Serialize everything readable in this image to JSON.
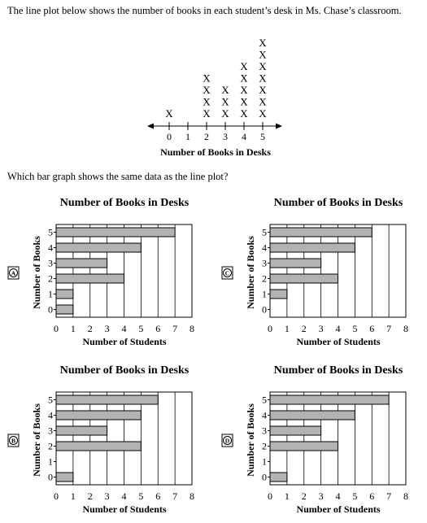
{
  "intro_text": "The line plot below shows the number of books in each student’s desk in Ms. Chase’s classroom.",
  "question_text": "Which bar graph shows the same data as the line plot?",
  "chart_data": [
    {
      "id": "line-plot",
      "type": "scatter",
      "subtype": "line plot",
      "xlabel": "Number of Books in Desks",
      "x_ticks": [
        0,
        1,
        2,
        3,
        4,
        5
      ],
      "marker": "X",
      "x": [
        0,
        1,
        2,
        3,
        4,
        5
      ],
      "values": [
        1,
        0,
        4,
        3,
        5,
        7
      ]
    },
    {
      "id": "chart-a",
      "option": "A",
      "type": "bar",
      "orientation": "horizontal",
      "title": "Number of Books in Desks",
      "xlabel": "Number of Students",
      "ylabel": "Number of Books",
      "categories": [
        "0",
        "1",
        "2",
        "3",
        "4",
        "5"
      ],
      "values": [
        1,
        1,
        4,
        3,
        5,
        7
      ],
      "xlim": [
        0,
        8
      ],
      "x_ticks": [
        0,
        1,
        2,
        3,
        4,
        5,
        6,
        7,
        8
      ],
      "grid": "vertical"
    },
    {
      "id": "chart-c",
      "option": "C",
      "type": "bar",
      "orientation": "horizontal",
      "title": "Number of Books in Desks",
      "xlabel": "Number of Students",
      "ylabel": "Number of Books",
      "categories": [
        "0",
        "1",
        "2",
        "3",
        "4",
        "5"
      ],
      "values": [
        0,
        1,
        4,
        3,
        5,
        6
      ],
      "xlim": [
        0,
        8
      ],
      "x_ticks": [
        0,
        1,
        2,
        3,
        4,
        5,
        6,
        7,
        8
      ],
      "grid": "vertical"
    },
    {
      "id": "chart-b",
      "option": "B",
      "type": "bar",
      "orientation": "horizontal",
      "title": "Number of Books in Desks",
      "xlabel": "Number of Students",
      "ylabel": "Number of Books",
      "categories": [
        "0",
        "1",
        "2",
        "3",
        "4",
        "5"
      ],
      "values": [
        1,
        0,
        5,
        3,
        5,
        6
      ],
      "xlim": [
        0,
        8
      ],
      "x_ticks": [
        0,
        1,
        2,
        3,
        4,
        5,
        6,
        7,
        8
      ],
      "grid": "vertical"
    },
    {
      "id": "chart-d",
      "option": "D",
      "type": "bar",
      "orientation": "horizontal",
      "title": "Number of Books in Desks",
      "xlabel": "Number of Students",
      "ylabel": "Number of Books",
      "categories": [
        "0",
        "1",
        "2",
        "3",
        "4",
        "5"
      ],
      "values": [
        1,
        0,
        4,
        3,
        5,
        7
      ],
      "xlim": [
        0,
        8
      ],
      "x_ticks": [
        0,
        1,
        2,
        3,
        4,
        5,
        6,
        7,
        8
      ],
      "grid": "vertical"
    }
  ],
  "colors": {
    "bar_fill": "#b3b3b3",
    "line": "#000000"
  }
}
